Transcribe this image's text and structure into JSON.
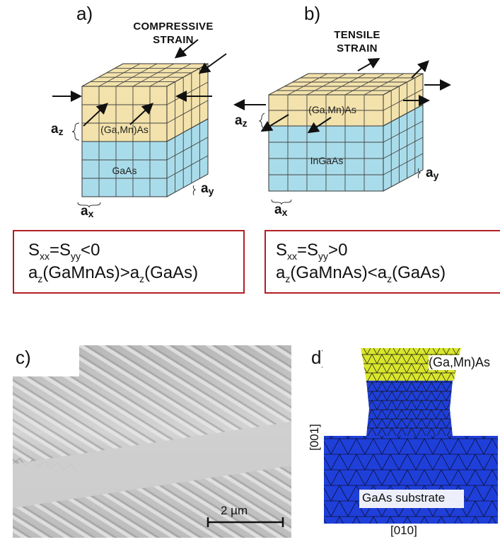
{
  "panel_a": {
    "label": "a)",
    "title_line1": "COMPRESSIVE",
    "title_line2": "STRAIN",
    "top_layer": "(Ga,Mn)As",
    "bottom_layer": "GaAs",
    "ax": "a",
    "ax_sub": "x",
    "ay": "a",
    "ay_sub": "y",
    "az": "a",
    "az_sub": "z",
    "eq1": {
      "s": "S",
      "xx": "xx",
      "eqs": "=S",
      "yy": "yy",
      "rel": "<0"
    },
    "eq2": {
      "a1": "a",
      "z1": "z",
      "m1": "(GaMnAs)>a",
      "z2": "z",
      "m2": "(GaAs)"
    }
  },
  "panel_b": {
    "label": "b)",
    "title_line1": "TENSILE",
    "title_line2": "STRAIN",
    "top_layer": "(Ga,Mn)As",
    "bottom_layer": "InGaAs",
    "ax": "a",
    "ax_sub": "x",
    "ay": "a",
    "ay_sub": "y",
    "az": "a",
    "az_sub": "z",
    "eq1": {
      "s": "S",
      "xx": "xx",
      "eqs": "=S",
      "yy": "yy",
      "rel": ">0"
    },
    "eq2": {
      "a1": "a",
      "z1": "z",
      "m1": "(GaMnAs)<a",
      "z2": "z",
      "m2": "(GaAs)"
    }
  },
  "panel_c": {
    "label": "c)",
    "scale": "2 µm"
  },
  "panel_d": {
    "label": "d)",
    "top_label": "(Ga,Mn)As",
    "substrate_label": "GaAs substrate",
    "xaxis": "[010]",
    "yaxis": "[001]"
  },
  "colors": {
    "layer_top": "#f3e2ab",
    "layer_bottom": "#a9dcea",
    "box_border": "#b21f24",
    "fem_blue": "#1f3fd9",
    "fem_yellow": "#d9e62c"
  }
}
